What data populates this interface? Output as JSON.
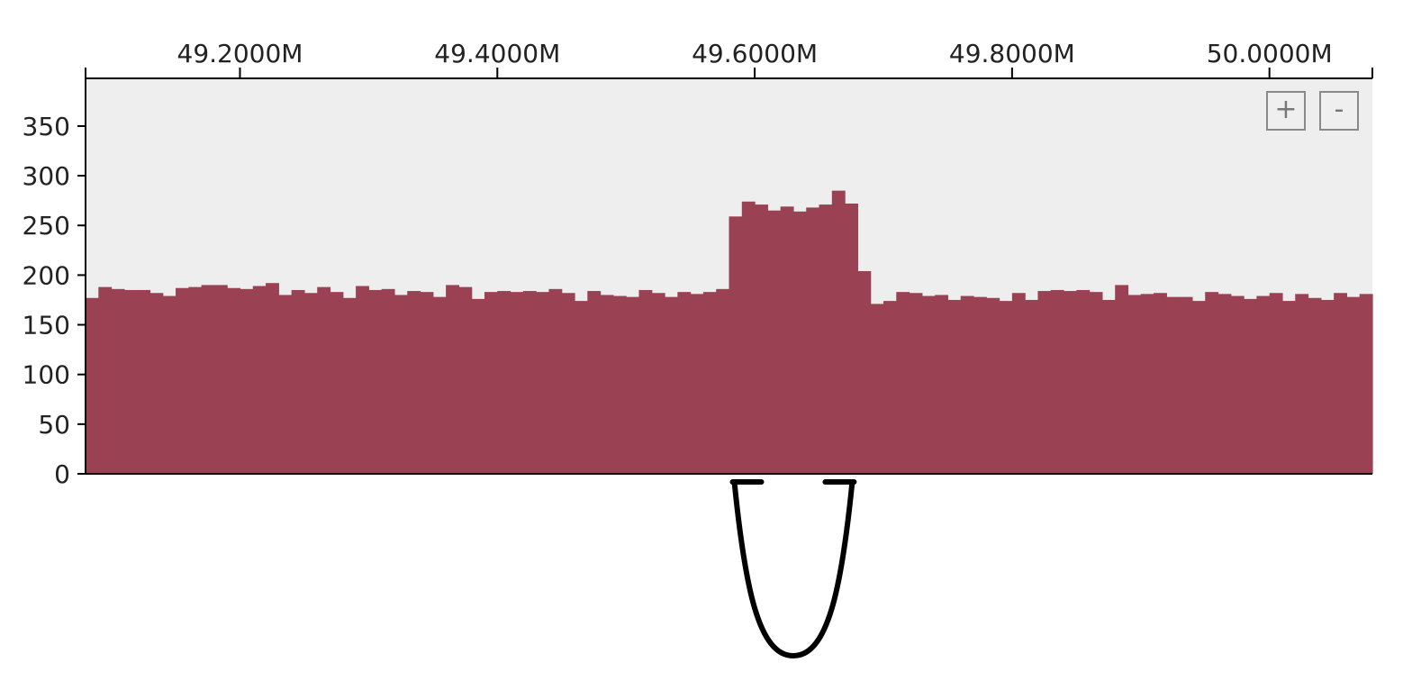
{
  "chart_data": {
    "type": "bar",
    "title": "",
    "xlabel": "",
    "ylabel": "",
    "x_ticks": [
      "49.2000M",
      "49.4000M",
      "49.6000M",
      "49.8000M",
      "50.0000M"
    ],
    "x_tick_values": [
      49200000,
      49400000,
      49600000,
      49800000,
      50000000
    ],
    "y_ticks": [
      "0",
      "50",
      "100",
      "150",
      "200",
      "250",
      "300",
      "350"
    ],
    "xlim": [
      49080000,
      50080000
    ],
    "ylim": [
      0,
      398
    ],
    "bin_width": 10000,
    "x": [
      49080000,
      49090000,
      49100000,
      49110000,
      49120000,
      49130000,
      49140000,
      49150000,
      49160000,
      49170000,
      49180000,
      49190000,
      49200000,
      49210000,
      49220000,
      49230000,
      49240000,
      49250000,
      49260000,
      49270000,
      49280000,
      49290000,
      49300000,
      49310000,
      49320000,
      49330000,
      49340000,
      49350000,
      49360000,
      49370000,
      49380000,
      49390000,
      49400000,
      49410000,
      49420000,
      49430000,
      49440000,
      49450000,
      49460000,
      49470000,
      49480000,
      49490000,
      49500000,
      49510000,
      49520000,
      49530000,
      49540000,
      49550000,
      49560000,
      49570000,
      49580000,
      49590000,
      49600000,
      49610000,
      49620000,
      49630000,
      49640000,
      49650000,
      49660000,
      49670000,
      49680000,
      49690000,
      49700000,
      49710000,
      49720000,
      49730000,
      49740000,
      49750000,
      49760000,
      49770000,
      49780000,
      49790000,
      49800000,
      49810000,
      49820000,
      49830000,
      49840000,
      49850000,
      49860000,
      49870000,
      49880000,
      49890000,
      49900000,
      49910000,
      49920000,
      49930000,
      49940000,
      49950000,
      49960000,
      49970000,
      49980000,
      49990000,
      50000000,
      50010000,
      50020000,
      50030000,
      50040000,
      50050000,
      50060000,
      50070000
    ],
    "values": [
      177,
      188,
      186,
      185,
      185,
      182,
      179,
      187,
      188,
      190,
      190,
      187,
      186,
      189,
      192,
      180,
      185,
      182,
      188,
      183,
      177,
      189,
      185,
      186,
      180,
      184,
      183,
      178,
      190,
      188,
      176,
      183,
      184,
      183,
      184,
      183,
      186,
      182,
      174,
      184,
      180,
      179,
      178,
      185,
      182,
      178,
      183,
      181,
      183,
      186,
      259,
      274,
      271,
      265,
      269,
      264,
      268,
      271,
      285,
      272,
      204,
      171,
      174,
      183,
      182,
      179,
      180,
      175,
      179,
      178,
      177,
      174,
      182,
      175,
      184,
      185,
      184,
      185,
      183,
      175,
      190,
      180,
      181,
      182,
      178,
      178,
      174,
      183,
      181,
      179,
      176,
      179,
      182,
      174,
      181,
      177,
      175,
      182,
      178,
      181
    ],
    "colors": {
      "bar": "#9a4253",
      "plot_background": "#eeeeee",
      "axis": "#000000"
    },
    "arc": {
      "from": 49580000,
      "to": 49680000
    },
    "grid": false,
    "legend": "none"
  },
  "controls": {
    "zoom_in": "+",
    "zoom_out": "-"
  }
}
